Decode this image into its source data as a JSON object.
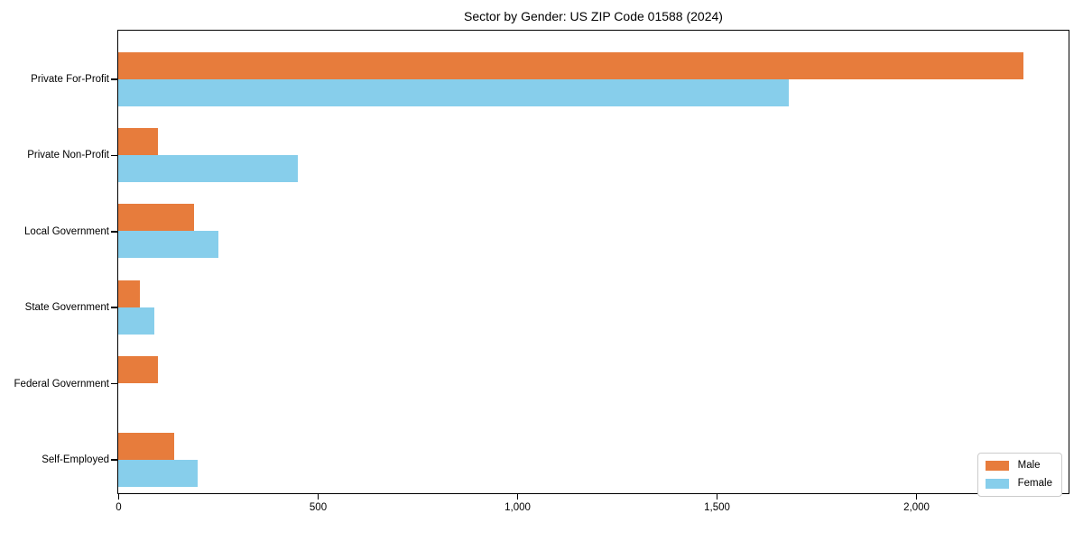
{
  "chart_data": {
    "type": "bar",
    "orientation": "horizontal",
    "title": "Sector by Gender: US ZIP Code 01588 (2024)",
    "categories": [
      "Private For-Profit",
      "Private Non-Profit",
      "Local Government",
      "State Government",
      "Federal Government",
      "Self-Employed"
    ],
    "series": [
      {
        "name": "Male",
        "color": "#E77C3C",
        "values": [
          2270,
          100,
          190,
          55,
          100,
          140
        ]
      },
      {
        "name": "Female",
        "color": "#87CEEB",
        "values": [
          1680,
          450,
          250,
          90,
          0,
          200
        ]
      }
    ],
    "xlim": [
      0,
      2380
    ],
    "xticks": [
      0,
      500,
      1000,
      1500,
      2000
    ],
    "xtick_labels": [
      "0",
      "500",
      "1,000",
      "1,500",
      "2,000"
    ],
    "grid": false,
    "legend_position": "lower right"
  }
}
